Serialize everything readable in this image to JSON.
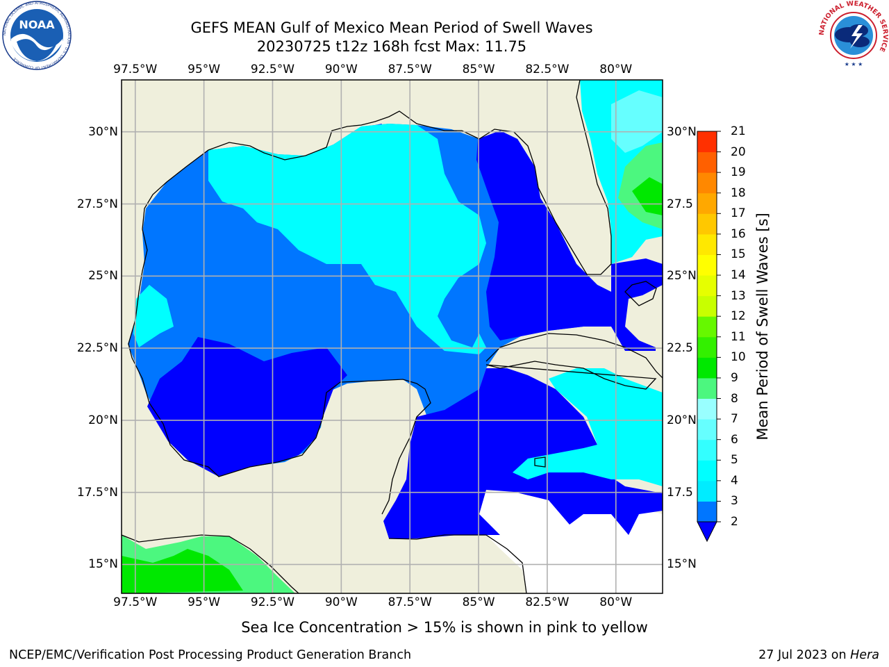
{
  "title": {
    "line1": "GEFS MEAN Gulf of Mexico Mean Period of Swell Waves",
    "line2": "20230725 t12z 168h fcst   Max: 11.75"
  },
  "axes": {
    "lon_labels": [
      "97.5°W",
      "95°W",
      "92.5°W",
      "90°W",
      "87.5°W",
      "85°W",
      "82.5°W",
      "80°W"
    ],
    "lat_labels_left": [
      "30°N",
      "27.5°N",
      "25°N",
      "22.5°N",
      "20°N",
      "17.5°N",
      "15°N"
    ],
    "lat_labels_right": [
      "30°N",
      "27.5",
      "25°N",
      "22.5",
      "20°N",
      "17.5",
      "15°N"
    ],
    "lon_values": [
      -97.5,
      -95,
      -92.5,
      -90,
      -87.5,
      -85,
      -82.5,
      -80
    ],
    "lat_values": [
      30,
      27.5,
      25,
      22.5,
      20,
      17.5,
      15
    ],
    "extent": {
      "lon": [
        -98,
        -78.3
      ],
      "lat": [
        14,
        31.8
      ]
    },
    "grid": true
  },
  "colorbar": {
    "label": "Mean Period of Swell Waves [s]",
    "ticks": [
      "21",
      "20",
      "19",
      "18",
      "17",
      "16",
      "15",
      "14",
      "13",
      "12",
      "11",
      "10",
      "9",
      "8",
      "7",
      "6",
      "5",
      "4",
      "3",
      "2"
    ],
    "levels": [
      2,
      3,
      4,
      5,
      6,
      7,
      8,
      9,
      10,
      11,
      12,
      13,
      14,
      15,
      16,
      17,
      18,
      19,
      20,
      21
    ],
    "colors": [
      "#0076ff",
      "#00ecff",
      "#00ffff",
      "#33ffff",
      "#66ffff",
      "#99ffff",
      "#4cf77f",
      "#00e800",
      "#33f000",
      "#66f800",
      "#c8ff00",
      "#e6ff00",
      "#ffff00",
      "#ffe800",
      "#ffc800",
      "#ffa800",
      "#ff8800",
      "#ff6000",
      "#ff3000"
    ],
    "under_color": "#0000ff",
    "extend": "min"
  },
  "colors": {
    "land": "#efefdc",
    "coast": "#000000",
    "grid": "#b0b0b0",
    "low_period": "#0000ff",
    "medium_period": "#0076ff",
    "high_period": "#00ffff"
  },
  "logos": {
    "left": {
      "text": "NOAA",
      "ring": "NATIONAL OCEANIC AND ATMOSPHERIC ADMINISTRATION · U.S. DEPARTMENT OF COMMERCE"
    },
    "right": {
      "ring": "NATIONAL WEATHER SERVICE"
    }
  },
  "note": "Sea Ice Concentration > 15% is shown in pink to yellow",
  "footer": {
    "left": "NCEP/EMC/Verification Post Processing Product Generation Branch",
    "right_date": "27 Jul 2023 on ",
    "right_host": "Hera"
  }
}
